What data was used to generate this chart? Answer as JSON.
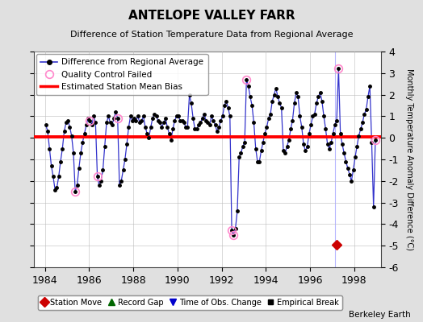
{
  "title": "ANTELOPE VALLEY FARR",
  "subtitle": "Difference of Station Temperature Data from Regional Average",
  "ylabel": "Monthly Temperature Anomaly Difference (°C)",
  "xlabel_ticks": [
    1984,
    1986,
    1988,
    1990,
    1992,
    1994,
    1996,
    1998
  ],
  "ylim": [
    -6,
    4
  ],
  "yticks": [
    -6,
    -5,
    -4,
    -3,
    -2,
    -1,
    0,
    1,
    2,
    3,
    4
  ],
  "xlim": [
    1983.5,
    1999.2
  ],
  "bias_level": 0.05,
  "station_move_x": 1997.2,
  "station_move_y": -4.95,
  "bg_color": "#e0e0e0",
  "plot_bg_color": "#ffffff",
  "line_color": "#3333cc",
  "bias_color": "#ff0000",
  "qc_color": "#ff88cc",
  "vertical_line_x": 1997.15,
  "series": {
    "x": [
      1984.042,
      1984.125,
      1984.208,
      1984.292,
      1984.375,
      1984.458,
      1984.542,
      1984.625,
      1984.708,
      1984.792,
      1984.875,
      1984.958,
      1985.042,
      1985.125,
      1985.208,
      1985.292,
      1985.375,
      1985.458,
      1985.542,
      1985.625,
      1985.708,
      1985.792,
      1985.875,
      1985.958,
      1986.042,
      1986.125,
      1986.208,
      1986.292,
      1986.375,
      1986.458,
      1986.542,
      1986.625,
      1986.708,
      1986.792,
      1986.875,
      1986.958,
      1987.042,
      1987.125,
      1987.208,
      1987.292,
      1987.375,
      1987.458,
      1987.542,
      1987.625,
      1987.708,
      1987.792,
      1987.875,
      1987.958,
      1988.042,
      1988.125,
      1988.208,
      1988.292,
      1988.375,
      1988.458,
      1988.542,
      1988.625,
      1988.708,
      1988.792,
      1988.875,
      1988.958,
      1989.042,
      1989.125,
      1989.208,
      1989.292,
      1989.375,
      1989.458,
      1989.542,
      1989.625,
      1989.708,
      1989.792,
      1989.875,
      1989.958,
      1990.042,
      1990.125,
      1990.208,
      1990.292,
      1990.375,
      1990.458,
      1990.542,
      1990.625,
      1990.708,
      1990.792,
      1990.875,
      1990.958,
      1991.042,
      1991.125,
      1991.208,
      1991.292,
      1991.375,
      1991.458,
      1991.542,
      1991.625,
      1991.708,
      1991.792,
      1991.875,
      1991.958,
      1992.042,
      1992.125,
      1992.208,
      1992.292,
      1992.375,
      1992.458,
      1992.542,
      1992.625,
      1992.708,
      1992.792,
      1992.875,
      1992.958,
      1993.042,
      1993.125,
      1993.208,
      1993.292,
      1993.375,
      1993.458,
      1993.542,
      1993.625,
      1993.708,
      1993.792,
      1993.875,
      1993.958,
      1994.042,
      1994.125,
      1994.208,
      1994.292,
      1994.375,
      1994.458,
      1994.542,
      1994.625,
      1994.708,
      1994.792,
      1994.875,
      1994.958,
      1995.042,
      1995.125,
      1995.208,
      1995.292,
      1995.375,
      1995.458,
      1995.542,
      1995.625,
      1995.708,
      1995.792,
      1995.875,
      1995.958,
      1996.042,
      1996.125,
      1996.208,
      1996.292,
      1996.375,
      1996.458,
      1996.542,
      1996.625,
      1996.708,
      1996.792,
      1996.875,
      1996.958,
      1997.042,
      1997.125,
      1997.208,
      1997.292,
      1997.375,
      1997.458,
      1997.542,
      1997.625,
      1997.708,
      1997.792,
      1997.875,
      1997.958,
      1998.042,
      1998.125,
      1998.208,
      1998.292,
      1998.375,
      1998.458,
      1998.542,
      1998.625,
      1998.708,
      1998.792,
      1998.875,
      1998.958
    ],
    "y": [
      0.6,
      0.3,
      -0.5,
      -1.3,
      -1.8,
      -2.4,
      -2.3,
      -1.8,
      -1.1,
      -0.5,
      0.3,
      0.7,
      0.8,
      0.5,
      0.1,
      -0.7,
      -2.5,
      -2.2,
      -1.4,
      -0.7,
      -0.2,
      0.2,
      0.6,
      0.9,
      0.8,
      0.6,
      1.0,
      0.7,
      -1.8,
      -2.2,
      -2.0,
      -1.5,
      -0.4,
      0.7,
      1.0,
      0.7,
      0.6,
      0.9,
      1.2,
      0.9,
      -2.2,
      -2.0,
      -1.5,
      -1.0,
      -0.3,
      0.5,
      1.0,
      0.8,
      0.9,
      0.8,
      1.0,
      0.7,
      0.8,
      1.0,
      0.5,
      0.2,
      0.0,
      0.5,
      0.9,
      1.1,
      1.0,
      0.8,
      0.7,
      0.5,
      0.7,
      0.9,
      0.5,
      0.2,
      -0.1,
      0.4,
      0.8,
      1.0,
      1.0,
      0.8,
      0.8,
      0.7,
      0.5,
      0.5,
      2.0,
      1.6,
      0.9,
      0.4,
      0.4,
      0.6,
      0.7,
      0.9,
      1.1,
      0.8,
      0.7,
      0.6,
      1.0,
      0.8,
      0.6,
      0.3,
      0.5,
      0.8,
      1.0,
      1.5,
      1.7,
      1.4,
      1.0,
      -4.3,
      -4.5,
      -4.2,
      -3.4,
      -0.9,
      -0.7,
      -0.4,
      -0.2,
      2.7,
      2.4,
      1.9,
      1.5,
      0.7,
      -0.5,
      -1.1,
      -1.1,
      -0.6,
      -0.2,
      0.2,
      0.5,
      0.9,
      1.1,
      1.7,
      2.0,
      2.3,
      1.9,
      1.6,
      1.4,
      -0.6,
      -0.7,
      -0.4,
      -0.1,
      0.4,
      0.8,
      1.6,
      2.1,
      1.9,
      1.0,
      0.5,
      -0.3,
      -0.6,
      -0.4,
      0.2,
      0.6,
      1.0,
      1.1,
      1.6,
      1.9,
      2.1,
      1.7,
      1.0,
      0.4,
      -0.3,
      -0.5,
      -0.2,
      0.2,
      0.6,
      0.8,
      3.2,
      0.2,
      -0.3,
      -0.7,
      -1.1,
      -1.4,
      -1.7,
      -2.0,
      -1.5,
      -0.9,
      -0.4,
      0.1,
      0.4,
      0.7,
      1.1,
      1.3,
      1.9,
      2.4,
      -0.2,
      -3.2,
      -0.1
    ]
  },
  "qc_failed_points": [
    [
      1985.375,
      -2.5
    ],
    [
      1986.042,
      0.8
    ],
    [
      1986.375,
      -1.8
    ],
    [
      1987.292,
      0.9
    ],
    [
      1992.458,
      -4.3
    ],
    [
      1992.542,
      -4.5
    ],
    [
      1993.125,
      2.7
    ],
    [
      1997.292,
      3.2
    ],
    [
      1998.958,
      -0.1
    ]
  ],
  "footer": "Berkeley Earth"
}
